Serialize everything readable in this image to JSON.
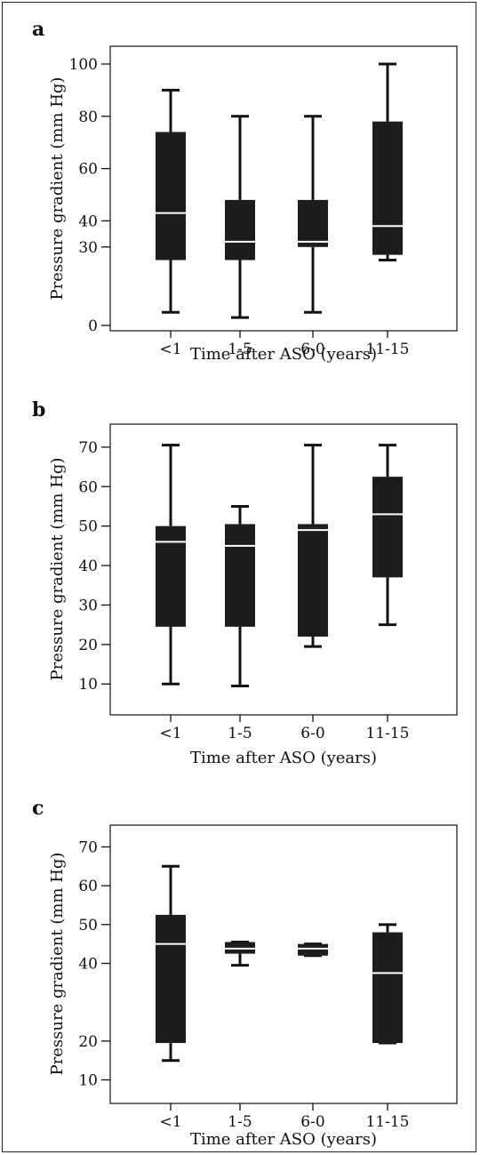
{
  "chart_data": [
    {
      "type": "box",
      "panel_label": "a",
      "xlabel": "Time after ASO (years)",
      "ylabel": "Pressure gradient (mm Hg)",
      "categories": [
        "<1",
        "1-5",
        "6-0",
        "11-15"
      ],
      "y_ticks": [
        {
          "label": "0",
          "value": 0
        },
        {
          "label": "30",
          "value": 30
        },
        {
          "label": "40",
          "value": 40
        },
        {
          "label": "60",
          "value": 60
        },
        {
          "label": "80",
          "value": 80
        },
        {
          "label": "100",
          "value": 100
        }
      ],
      "ylim": [
        0,
        100
      ],
      "boxes": [
        {
          "min": 5,
          "q1": 25,
          "median": 43,
          "q3": 74,
          "max": 90
        },
        {
          "min": 3,
          "q1": 25,
          "median": 32,
          "q3": 48,
          "max": 80
        },
        {
          "min": 5,
          "q1": 30,
          "median": 32,
          "q3": 48,
          "max": 80
        },
        {
          "min": 25,
          "q1": 27,
          "median": 38,
          "q3": 78,
          "max": 100
        }
      ]
    },
    {
      "type": "box",
      "panel_label": "b",
      "xlabel": "Time after ASO (years)",
      "ylabel": "Pressure gradient (mm Hg)",
      "categories": [
        "<1",
        "1-5",
        "6-0",
        "11-15"
      ],
      "y_ticks": [
        {
          "label": "10",
          "value": 10
        },
        {
          "label": "20",
          "value": 20
        },
        {
          "label": "30",
          "value": 30
        },
        {
          "label": "40",
          "value": 40
        },
        {
          "label": "50",
          "value": 50
        },
        {
          "label": "60",
          "value": 60
        },
        {
          "label": "70",
          "value": 70
        }
      ],
      "ylim": [
        6,
        72
      ],
      "boxes": [
        {
          "min": 10,
          "q1": 24.5,
          "median": 46,
          "q3": 50,
          "max": 70.5
        },
        {
          "min": 9.5,
          "q1": 24.5,
          "median": 45,
          "q3": 50.5,
          "max": 55
        },
        {
          "min": 19.5,
          "q1": 22,
          "median": 49,
          "q3": 50.5,
          "max": 70.5
        },
        {
          "min": 25,
          "q1": 37,
          "median": 53,
          "q3": 62.5,
          "max": 70.5
        }
      ]
    },
    {
      "type": "box",
      "panel_label": "c",
      "xlabel": "Time after ASO (years)",
      "ylabel": "Pressure gradient (mm Hg)",
      "categories": [
        "<1",
        "1-5",
        "6-0",
        "11-15"
      ],
      "y_ticks": [
        {
          "label": "10",
          "value": 10
        },
        {
          "label": "20",
          "value": 20
        },
        {
          "label": "40",
          "value": 40
        },
        {
          "label": "50",
          "value": 50
        },
        {
          "label": "60",
          "value": 60
        },
        {
          "label": "70",
          "value": 70
        }
      ],
      "ylim": [
        6,
        74
      ],
      "boxes": [
        {
          "min": 15,
          "q1": 19.5,
          "median": 45,
          "q3": 52.5,
          "max": 65
        },
        {
          "min": 39.5,
          "q1": 42.5,
          "median": 43.8,
          "q3": 45.5,
          "max": 45.5
        },
        {
          "min": 42,
          "q1": 42,
          "median": 43.8,
          "q3": 45,
          "max": 45
        },
        {
          "min": 19.5,
          "q1": 19.5,
          "median": 37.5,
          "q3": 48,
          "max": 50
        }
      ]
    }
  ]
}
